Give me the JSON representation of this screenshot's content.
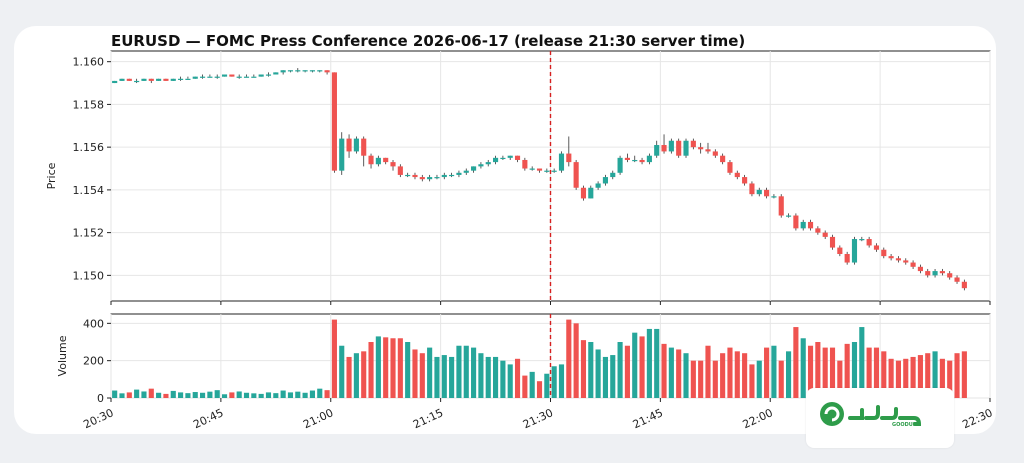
{
  "chart_data": {
    "type": "candlestick",
    "title": "EURUSD — FOMC Press Conference 2026-06-17 (release 21:30 server time)",
    "price_panel": {
      "ylabel": "Price",
      "yticks": [
        "1.160",
        "1.158",
        "1.156",
        "1.154",
        "1.152",
        "1.150"
      ],
      "ytick_values": [
        1.16,
        1.158,
        1.156,
        1.154,
        1.152,
        1.15
      ],
      "ylim": [
        1.1488,
        1.1605
      ]
    },
    "volume_panel": {
      "ylabel": "Volume",
      "yticks": [
        "400",
        "200",
        "0"
      ],
      "ytick_values": [
        400,
        200,
        0
      ],
      "ylim": [
        0,
        450
      ]
    },
    "x_range_minutes": [
      0,
      120
    ],
    "x_tick_labels": [
      "20:30",
      "20:45",
      "21:00",
      "21:15",
      "21:30",
      "21:45",
      "22:00",
      "22:15",
      "22:30"
    ],
    "x_tick_minutes": [
      0,
      15,
      30,
      45,
      60,
      75,
      90,
      105,
      120
    ],
    "release_line_minute": 60,
    "grid": true,
    "colors": {
      "up": "#26a69a",
      "down": "#ef5350",
      "release_line": "#d62020"
    },
    "candles": [
      [
        0,
        1.159,
        1.1591,
        1.1591,
        1.159,
        40
      ],
      [
        1,
        1.1591,
        1.1592,
        1.1592,
        1.1591,
        25
      ],
      [
        2,
        1.1592,
        1.1591,
        1.1592,
        1.1591,
        30
      ],
      [
        3,
        1.1591,
        1.1591,
        1.1592,
        1.159,
        45
      ],
      [
        4,
        1.1591,
        1.1592,
        1.1592,
        1.1591,
        35
      ],
      [
        5,
        1.1592,
        1.1591,
        1.1592,
        1.159,
        50
      ],
      [
        6,
        1.1591,
        1.1592,
        1.1592,
        1.1591,
        28
      ],
      [
        7,
        1.1592,
        1.1591,
        1.1592,
        1.1591,
        22
      ],
      [
        8,
        1.1591,
        1.1592,
        1.1592,
        1.1591,
        38
      ],
      [
        9,
        1.1592,
        1.1592,
        1.1593,
        1.1591,
        30
      ],
      [
        10,
        1.1592,
        1.1592,
        1.1593,
        1.1592,
        26
      ],
      [
        11,
        1.1592,
        1.1593,
        1.1593,
        1.1592,
        32
      ],
      [
        12,
        1.1593,
        1.1593,
        1.1594,
        1.1592,
        28
      ],
      [
        13,
        1.1593,
        1.1593,
        1.1594,
        1.1593,
        34
      ],
      [
        14,
        1.1593,
        1.1593,
        1.1594,
        1.1592,
        42
      ],
      [
        15,
        1.1593,
        1.1594,
        1.1594,
        1.1593,
        20
      ],
      [
        16,
        1.1594,
        1.1593,
        1.1594,
        1.1593,
        30
      ],
      [
        17,
        1.1593,
        1.1593,
        1.1594,
        1.1592,
        35
      ],
      [
        18,
        1.1593,
        1.1593,
        1.1594,
        1.1593,
        28
      ],
      [
        19,
        1.1593,
        1.1593,
        1.1594,
        1.1593,
        25
      ],
      [
        20,
        1.1593,
        1.1594,
        1.1594,
        1.1593,
        22
      ],
      [
        21,
        1.1594,
        1.1594,
        1.1595,
        1.1593,
        30
      ],
      [
        22,
        1.1594,
        1.1595,
        1.1595,
        1.1594,
        26
      ],
      [
        23,
        1.1595,
        1.1596,
        1.1596,
        1.1594,
        40
      ],
      [
        24,
        1.1596,
        1.1596,
        1.1596,
        1.1595,
        30
      ],
      [
        25,
        1.1596,
        1.1596,
        1.1597,
        1.1595,
        34
      ],
      [
        26,
        1.1596,
        1.1596,
        1.1596,
        1.1595,
        28
      ],
      [
        27,
        1.1596,
        1.1596,
        1.1596,
        1.1595,
        40
      ],
      [
        28,
        1.1596,
        1.1596,
        1.1596,
        1.1595,
        50
      ],
      [
        29,
        1.1596,
        1.1595,
        1.1596,
        1.1594,
        42
      ],
      [
        30,
        1.1595,
        1.1549,
        1.1595,
        1.1548,
        420
      ],
      [
        31,
        1.1549,
        1.1564,
        1.1567,
        1.1547,
        280
      ],
      [
        32,
        1.1564,
        1.1558,
        1.1566,
        1.1555,
        220
      ],
      [
        33,
        1.1558,
        1.1564,
        1.1565,
        1.1557,
        240
      ],
      [
        34,
        1.1564,
        1.1556,
        1.1565,
        1.1551,
        250
      ],
      [
        35,
        1.1556,
        1.1552,
        1.1557,
        1.155,
        300
      ],
      [
        36,
        1.1552,
        1.1555,
        1.1556,
        1.1551,
        330
      ],
      [
        37,
        1.1555,
        1.1553,
        1.1555,
        1.1552,
        325
      ],
      [
        38,
        1.1553,
        1.1551,
        1.1554,
        1.1549,
        320
      ],
      [
        39,
        1.1551,
        1.1547,
        1.1552,
        1.1546,
        320
      ],
      [
        40,
        1.1547,
        1.1547,
        1.1548,
        1.1546,
        300
      ],
      [
        41,
        1.1547,
        1.1546,
        1.1548,
        1.1545,
        260
      ],
      [
        42,
        1.1546,
        1.1545,
        1.1547,
        1.1544,
        240
      ],
      [
        43,
        1.1545,
        1.1546,
        1.1547,
        1.1544,
        270
      ],
      [
        44,
        1.1546,
        1.1546,
        1.1547,
        1.1545,
        220
      ],
      [
        45,
        1.1546,
        1.1547,
        1.1548,
        1.1545,
        230
      ],
      [
        46,
        1.1547,
        1.1547,
        1.1548,
        1.1546,
        220
      ],
      [
        47,
        1.1547,
        1.1548,
        1.1549,
        1.1546,
        280
      ],
      [
        48,
        1.1548,
        1.1549,
        1.155,
        1.1547,
        280
      ],
      [
        49,
        1.1549,
        1.1551,
        1.1551,
        1.1548,
        270
      ],
      [
        50,
        1.1551,
        1.1552,
        1.1553,
        1.155,
        240
      ],
      [
        51,
        1.1552,
        1.1553,
        1.1554,
        1.1551,
        220
      ],
      [
        52,
        1.1553,
        1.1555,
        1.1556,
        1.1552,
        220
      ],
      [
        53,
        1.1555,
        1.1555,
        1.1556,
        1.1554,
        200
      ],
      [
        54,
        1.1555,
        1.1556,
        1.1556,
        1.1554,
        180
      ],
      [
        55,
        1.1556,
        1.1554,
        1.1556,
        1.1553,
        210
      ],
      [
        56,
        1.1554,
        1.155,
        1.1555,
        1.1549,
        120
      ],
      [
        57,
        1.155,
        1.155,
        1.1551,
        1.1549,
        140
      ],
      [
        58,
        1.155,
        1.1549,
        1.155,
        1.1548,
        90
      ],
      [
        59,
        1.1549,
        1.1549,
        1.155,
        1.1548,
        130
      ],
      [
        60,
        1.1549,
        1.1549,
        1.155,
        1.1548,
        170
      ],
      [
        61,
        1.1549,
        1.1557,
        1.1558,
        1.1548,
        180
      ],
      [
        62,
        1.1557,
        1.1553,
        1.1565,
        1.1551,
        420
      ],
      [
        63,
        1.1553,
        1.1541,
        1.1554,
        1.154,
        400
      ],
      [
        64,
        1.1541,
        1.1536,
        1.1542,
        1.1535,
        310
      ],
      [
        65,
        1.1536,
        1.1541,
        1.1542,
        1.1536,
        300
      ],
      [
        66,
        1.1541,
        1.1543,
        1.1544,
        1.154,
        260
      ],
      [
        67,
        1.1543,
        1.1546,
        1.1547,
        1.1542,
        220
      ],
      [
        68,
        1.1546,
        1.1548,
        1.1549,
        1.1545,
        230
      ],
      [
        69,
        1.1548,
        1.1555,
        1.1556,
        1.1547,
        300
      ],
      [
        70,
        1.1555,
        1.1554,
        1.1557,
        1.1553,
        280
      ],
      [
        71,
        1.1554,
        1.1554,
        1.1556,
        1.1553,
        350
      ],
      [
        72,
        1.1554,
        1.1553,
        1.1555,
        1.1552,
        330
      ],
      [
        73,
        1.1553,
        1.1556,
        1.1557,
        1.1552,
        370
      ],
      [
        74,
        1.1556,
        1.1561,
        1.1563,
        1.1555,
        370
      ],
      [
        75,
        1.1561,
        1.1558,
        1.1566,
        1.1557,
        290
      ],
      [
        76,
        1.1558,
        1.1563,
        1.1564,
        1.1557,
        270
      ],
      [
        77,
        1.1563,
        1.1556,
        1.1564,
        1.1555,
        260
      ],
      [
        78,
        1.1556,
        1.1563,
        1.1564,
        1.1555,
        240
      ],
      [
        79,
        1.1563,
        1.156,
        1.1564,
        1.1559,
        200
      ],
      [
        80,
        1.156,
        1.1559,
        1.1562,
        1.1557,
        200
      ],
      [
        81,
        1.1559,
        1.1558,
        1.1562,
        1.1557,
        280
      ],
      [
        82,
        1.1558,
        1.1556,
        1.1559,
        1.1555,
        200
      ],
      [
        83,
        1.1556,
        1.1553,
        1.1557,
        1.1552,
        240
      ],
      [
        84,
        1.1553,
        1.1548,
        1.1554,
        1.1547,
        270
      ],
      [
        85,
        1.1548,
        1.1546,
        1.1549,
        1.1545,
        250
      ],
      [
        86,
        1.1546,
        1.1543,
        1.1547,
        1.1542,
        240
      ],
      [
        87,
        1.1543,
        1.1538,
        1.1544,
        1.1537,
        180
      ],
      [
        88,
        1.1538,
        1.154,
        1.1541,
        1.1537,
        200
      ],
      [
        89,
        1.154,
        1.1537,
        1.1541,
        1.1536,
        270
      ],
      [
        90,
        1.1537,
        1.1537,
        1.1538,
        1.1536,
        280
      ],
      [
        91,
        1.1537,
        1.1528,
        1.1538,
        1.1527,
        200
      ],
      [
        92,
        1.1528,
        1.1528,
        1.1529,
        1.1527,
        250
      ],
      [
        93,
        1.1528,
        1.1522,
        1.1529,
        1.1521,
        380
      ],
      [
        94,
        1.1522,
        1.1525,
        1.1526,
        1.1521,
        320
      ],
      [
        95,
        1.1525,
        1.1522,
        1.1526,
        1.1521,
        280
      ],
      [
        96,
        1.1522,
        1.152,
        1.1523,
        1.1519,
        300
      ],
      [
        97,
        1.152,
        1.1518,
        1.1521,
        1.1517,
        270
      ],
      [
        98,
        1.1518,
        1.1513,
        1.1519,
        1.1512,
        270
      ],
      [
        99,
        1.1513,
        1.151,
        1.1514,
        1.1509,
        200
      ],
      [
        100,
        1.151,
        1.1506,
        1.1511,
        1.1505,
        290
      ],
      [
        101,
        1.1506,
        1.1517,
        1.1518,
        1.1505,
        300
      ],
      [
        102,
        1.1517,
        1.1517,
        1.1518,
        1.1516,
        380
      ],
      [
        103,
        1.1517,
        1.1514,
        1.1518,
        1.1513,
        270
      ],
      [
        104,
        1.1514,
        1.1512,
        1.1515,
        1.1511,
        270
      ],
      [
        105,
        1.1512,
        1.1509,
        1.1513,
        1.1508,
        250
      ],
      [
        106,
        1.1509,
        1.1508,
        1.151,
        1.1507,
        210
      ],
      [
        107,
        1.1508,
        1.1507,
        1.1509,
        1.1506,
        200
      ],
      [
        108,
        1.1507,
        1.1506,
        1.1508,
        1.1505,
        210
      ],
      [
        109,
        1.1506,
        1.1504,
        1.1507,
        1.1503,
        220
      ],
      [
        110,
        1.1504,
        1.1502,
        1.1505,
        1.1501,
        230
      ],
      [
        111,
        1.1502,
        1.15,
        1.1503,
        1.1499,
        240
      ],
      [
        112,
        1.15,
        1.1502,
        1.1503,
        1.1499,
        250
      ],
      [
        113,
        1.1502,
        1.1501,
        1.1503,
        1.15,
        210
      ],
      [
        114,
        1.1501,
        1.1499,
        1.1502,
        1.1498,
        200
      ],
      [
        115,
        1.1499,
        1.1497,
        1.15,
        1.1496,
        240
      ],
      [
        116,
        1.1497,
        1.1494,
        1.1498,
        1.1493,
        250
      ]
    ]
  },
  "logo": {
    "small_text": "GOODUP"
  }
}
